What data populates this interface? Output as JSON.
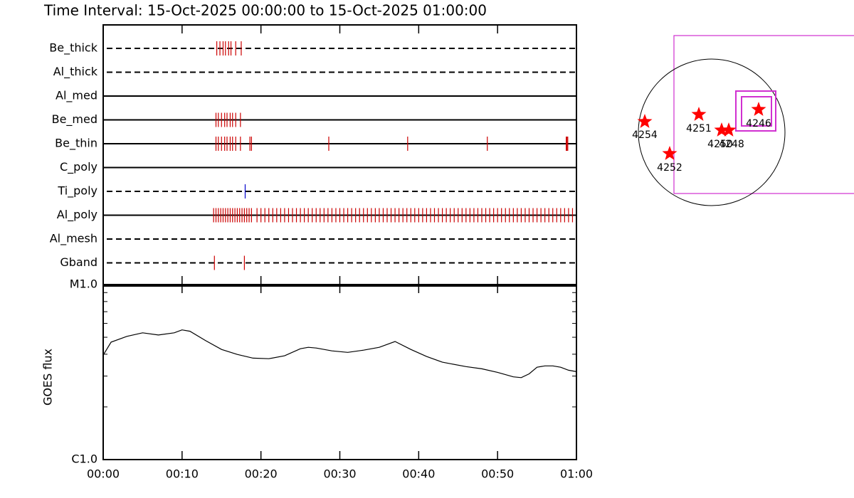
{
  "title": "Time Interval: 15-Oct-2025 00:00:00 to 15-Oct-2025 01:00:00",
  "filters": [
    {
      "name": "Be_thick",
      "line": "dashed",
      "color": "#cc0000",
      "times": [
        14.4,
        14.8,
        15.2,
        15.5,
        15.9,
        16.2,
        16.8,
        17.5
      ]
    },
    {
      "name": "Al_thick",
      "line": "dashed",
      "color": "#cc0000",
      "times": []
    },
    {
      "name": "Al_med",
      "line": "solid",
      "color": "#cc0000",
      "times": []
    },
    {
      "name": "Be_med",
      "line": "solid",
      "color": "#cc0000",
      "times": [
        14.3,
        14.6,
        15.0,
        15.4,
        15.7,
        16.1,
        16.4,
        16.8,
        17.4
      ]
    },
    {
      "name": "Be_thin",
      "line": "solid",
      "color": "#cc0000",
      "times": [
        14.3,
        14.6,
        15.0,
        15.4,
        15.7,
        16.1,
        16.4,
        16.8,
        17.4,
        18.6,
        18.8,
        28.6,
        38.6,
        48.7,
        58.7,
        58.8,
        58.9
      ]
    },
    {
      "name": "C_poly",
      "line": "solid",
      "color": "#cc0000",
      "times": []
    },
    {
      "name": "Ti_poly",
      "line": "dashed",
      "color": "#0000cc",
      "times": [
        18.0
      ]
    },
    {
      "name": "Al_poly",
      "line": "solid",
      "color": "#cc0000",
      "times": [
        14.0,
        14.3,
        14.6,
        14.9,
        15.2,
        15.5,
        15.8,
        16.1,
        16.4,
        16.7,
        17.0,
        17.3,
        17.6,
        17.9,
        18.2,
        18.5,
        18.8,
        19.5,
        20,
        20.5,
        21,
        21.5,
        22,
        22.5,
        23,
        23.5,
        24,
        24.5,
        25,
        25.5,
        26,
        26.5,
        27,
        27.5,
        28,
        28.5,
        29,
        29.5,
        30,
        30.5,
        31,
        31.5,
        32,
        32.5,
        33,
        33.5,
        34,
        34.5,
        35,
        35.5,
        36,
        36.5,
        37,
        37.5,
        38,
        38.5,
        39,
        39.5,
        40,
        40.5,
        41,
        41.5,
        42,
        42.5,
        43,
        43.5,
        44,
        44.5,
        45,
        45.5,
        46,
        46.5,
        47,
        47.5,
        48,
        48.5,
        49,
        49.5,
        50,
        50.5,
        51,
        51.5,
        52,
        52.5,
        53,
        53.5,
        54,
        54.5,
        55,
        55.5,
        56,
        56.5,
        57,
        57.5,
        58,
        58.5,
        59,
        59.5
      ]
    },
    {
      "name": "Al_mesh",
      "line": "dashed",
      "color": "#cc0000",
      "times": []
    },
    {
      "name": "Gband",
      "line": "dashed",
      "color": "#cc0000",
      "times": [
        14.1,
        17.9
      ]
    }
  ],
  "chart_data": {
    "type": "line",
    "ylabel": "GOES flux",
    "log_y": true,
    "color": "#000000",
    "x": [
      0,
      1,
      3,
      5,
      7,
      9,
      10,
      11,
      13,
      15,
      17,
      19,
      21,
      23,
      25,
      26,
      27,
      29,
      31,
      33,
      35,
      37,
      39,
      41,
      43,
      44,
      46,
      48,
      50,
      52,
      53,
      54,
      55,
      56,
      57,
      58,
      59,
      60
    ],
    "values": [
      3.95e-06,
      4.69e-06,
      5.06e-06,
      5.3e-06,
      5.15e-06,
      5.3e-06,
      5.51e-06,
      5.41e-06,
      4.78e-06,
      4.26e-06,
      3.99e-06,
      3.8e-06,
      3.77e-06,
      3.92e-06,
      4.3e-06,
      4.38e-06,
      4.34e-06,
      4.18e-06,
      4.1e-06,
      4.22e-06,
      4.38e-06,
      4.73e-06,
      4.26e-06,
      3.88e-06,
      3.6e-06,
      3.53e-06,
      3.4e-06,
      3.3e-06,
      3.15e-06,
      2.97e-06,
      2.94e-06,
      3.09e-06,
      3.37e-06,
      3.43e-06,
      3.43e-06,
      3.37e-06,
      3.24e-06,
      3.18e-06
    ],
    "xlim": [
      0,
      60
    ],
    "xticks": [
      {
        "value": 0,
        "label": "00:00"
      },
      {
        "value": 10,
        "label": "00:10"
      },
      {
        "value": 20,
        "label": "00:20"
      },
      {
        "value": 30,
        "label": "00:30"
      },
      {
        "value": 40,
        "label": "00:40"
      },
      {
        "value": 50,
        "label": "00:50"
      },
      {
        "value": 60,
        "label": "01:00"
      }
    ],
    "ylim": [
      1e-06,
      1e-05
    ],
    "yticks": [
      {
        "value": 1e-06,
        "label": "C1.0"
      },
      {
        "value": 1e-05,
        "label": "M1.0"
      }
    ]
  },
  "regions": [
    "4254",
    "4251",
    "4252",
    "4250",
    "4248",
    "4246"
  ]
}
